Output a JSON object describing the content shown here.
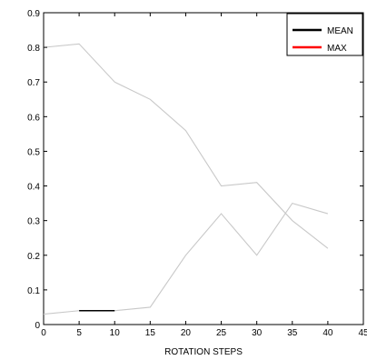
{
  "chart_data": {
    "type": "line",
    "title": "",
    "xlabel": "ROTATION STEPS",
    "ylabel": "",
    "xlim": [
      0,
      45
    ],
    "ylim": [
      0,
      0.9
    ],
    "xticks": [
      "0",
      "5",
      "10",
      "15",
      "20",
      "25",
      "30",
      "35",
      "40",
      "45"
    ],
    "yticks": [
      "0",
      "0.1",
      "0.2",
      "0.3",
      "0.4",
      "0.5",
      "0.6",
      "0.7",
      "0.8",
      "0.9"
    ],
    "grid": false,
    "legend": {
      "placement": "top-right",
      "entries": [
        {
          "label": "MEAN",
          "color": "#000000"
        },
        {
          "label": "MAX",
          "color": "#ff0000"
        }
      ]
    },
    "series": [
      {
        "color": "#c8c8c8",
        "x": [
          0,
          5,
          10,
          15,
          20,
          25,
          30,
          35,
          40
        ],
        "y": [
          0.8,
          0.81,
          0.7,
          0.65,
          0.56,
          0.4,
          0.41,
          0.3,
          0.22
        ]
      },
      {
        "color": "#c8c8c8",
        "x": [
          0,
          5,
          10,
          15,
          20,
          25,
          30,
          35,
          40
        ],
        "y": [
          0.03,
          0.04,
          0.04,
          0.05,
          0.2,
          0.32,
          0.2,
          0.35,
          0.32
        ]
      },
      {
        "color": "#000000",
        "x": [
          5,
          10
        ],
        "y": [
          0.04,
          0.04
        ]
      }
    ]
  }
}
